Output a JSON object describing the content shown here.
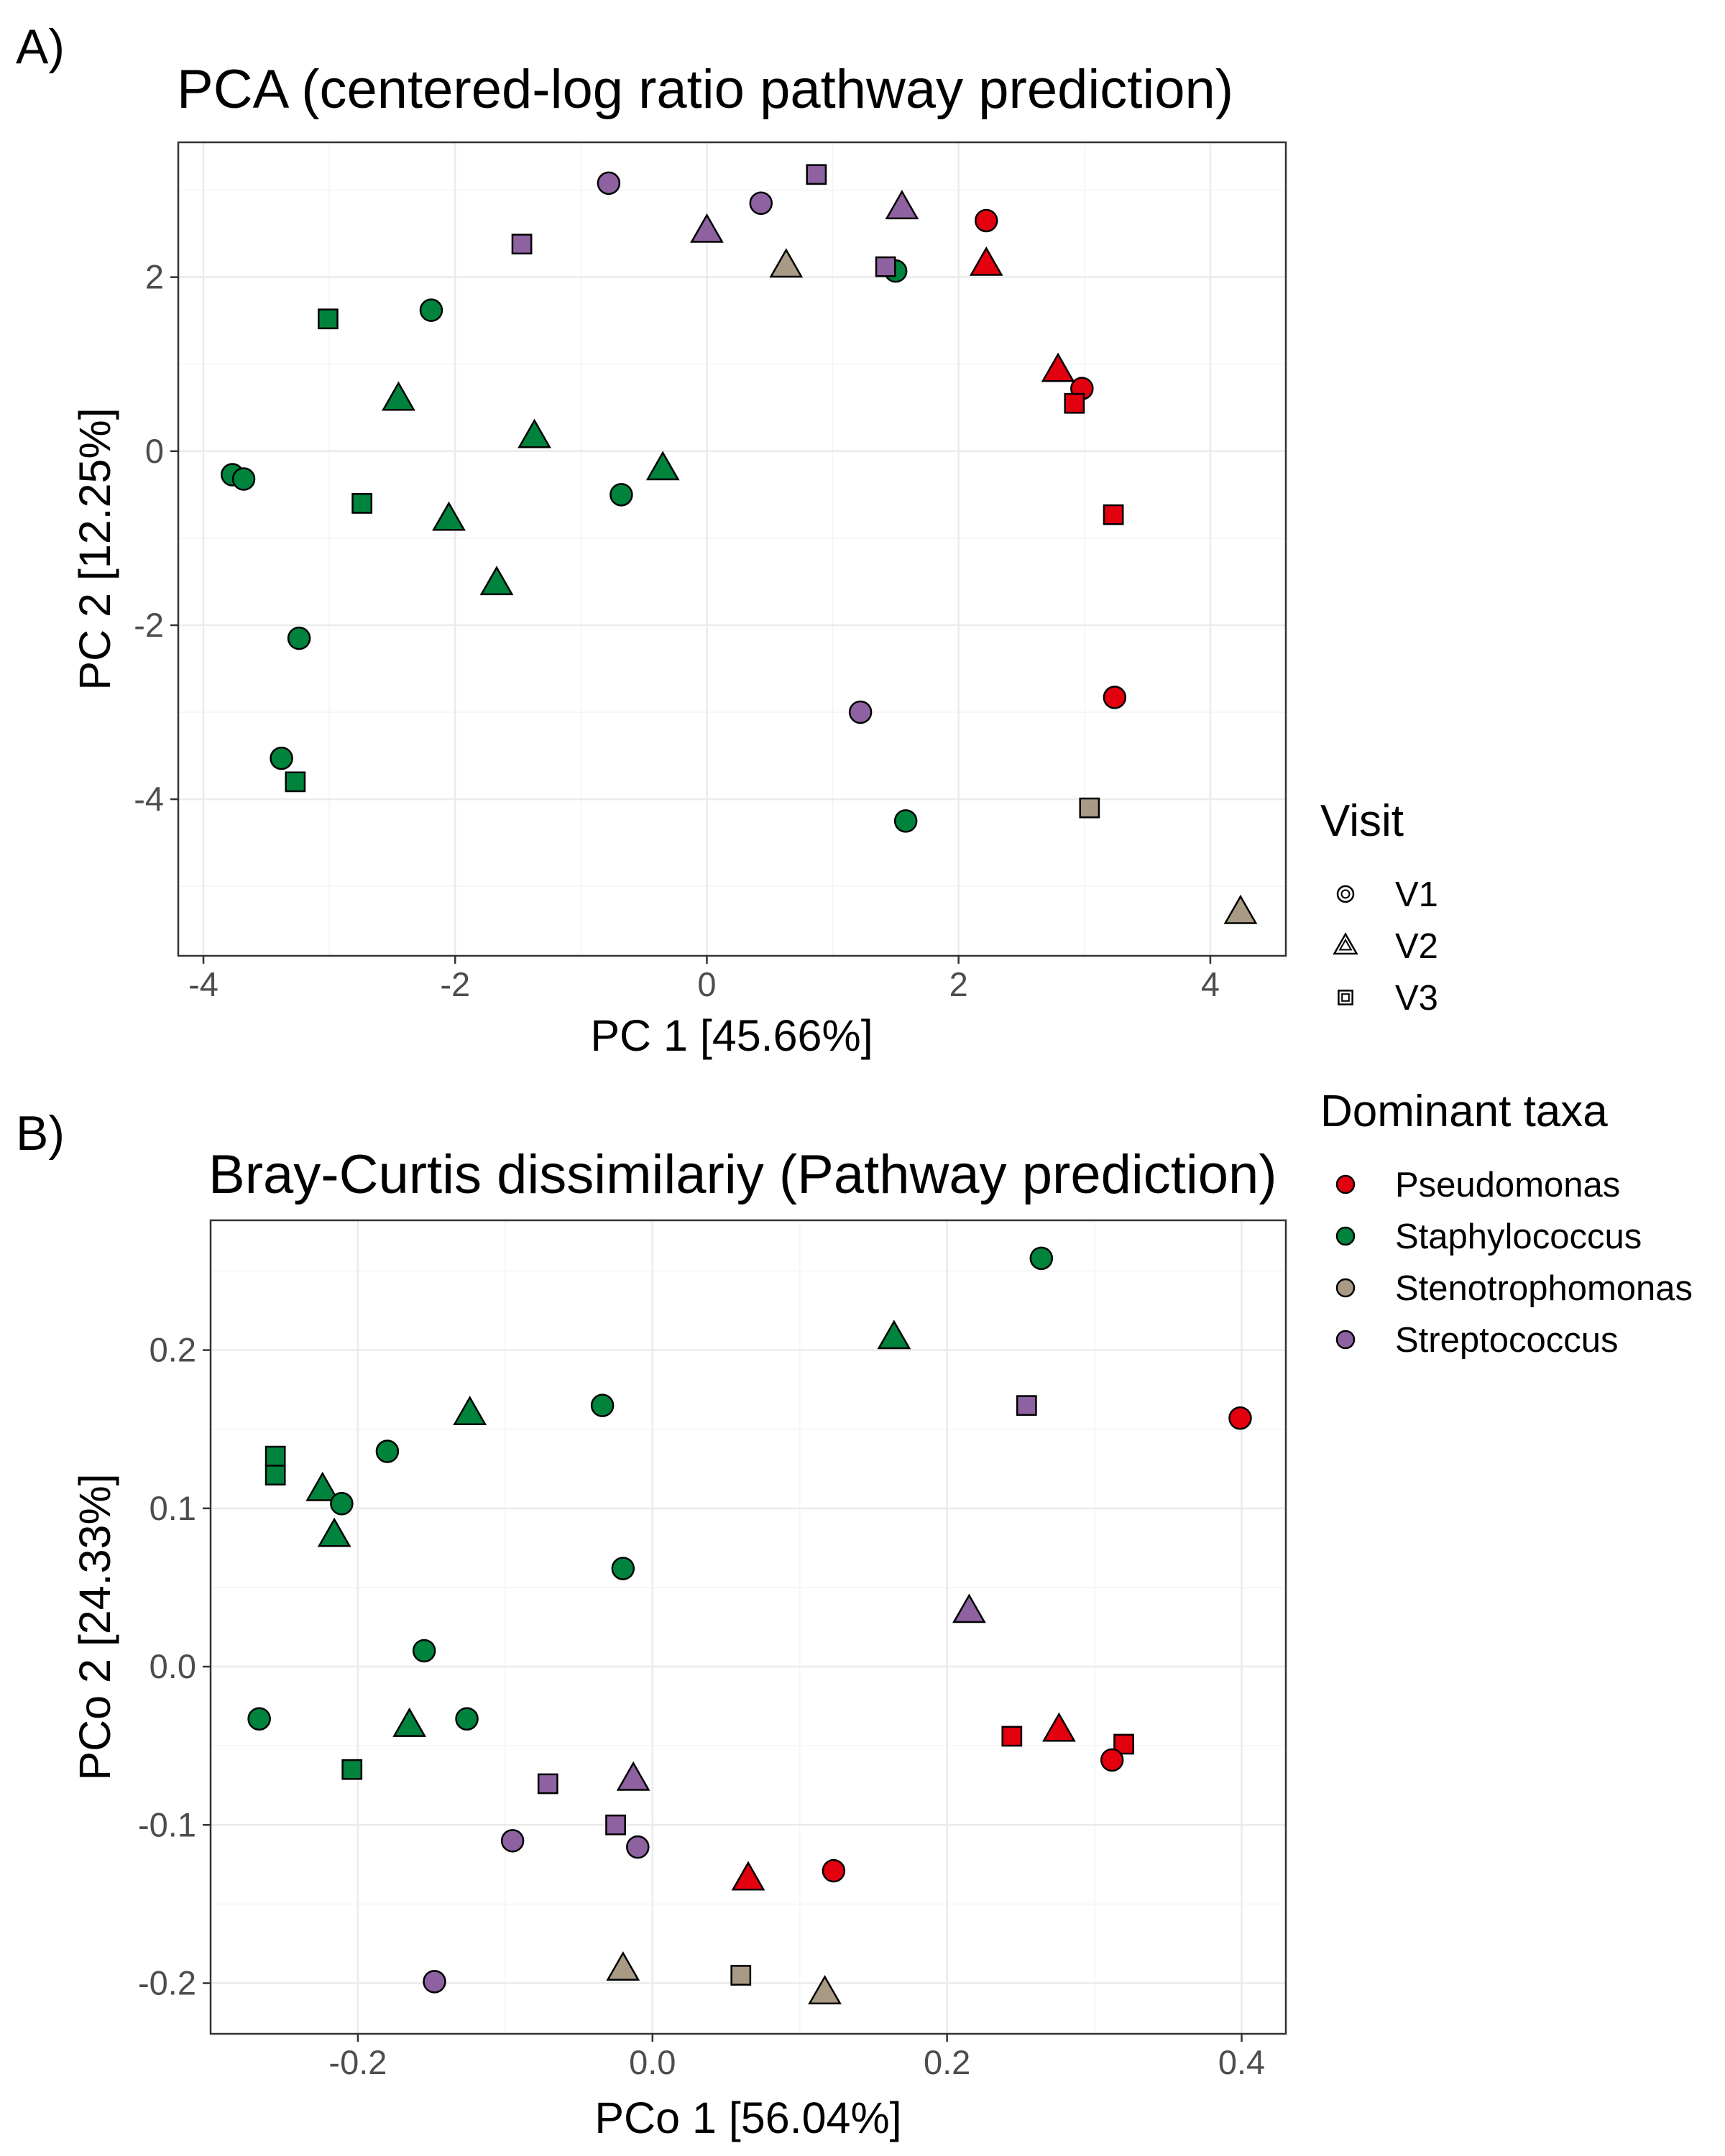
{
  "colors": {
    "Pseudomonas": "#e3000f",
    "Staphylococcus": "#00843d",
    "Stenotrophomonas": "#a89a84",
    "Streptococcus": "#8e61a0"
  },
  "legend": {
    "visit_title": "Visit",
    "visit_items": [
      {
        "label": "V1",
        "shape": "circle"
      },
      {
        "label": "V2",
        "shape": "triangle"
      },
      {
        "label": "V3",
        "shape": "square"
      }
    ],
    "taxa_title": "Dominant taxa",
    "taxa_items": [
      "Pseudomonas",
      "Staphylococcus",
      "Stenotrophomonas",
      "Streptococcus"
    ]
  },
  "chart_data": [
    {
      "panel": "A)",
      "type": "scatter",
      "title": "PCA (centered-log ratio pathway prediction)",
      "xlabel": "PC 1 [45.66%]",
      "ylabel": "PC 2 [12.25%]",
      "xlim": [
        -4.2,
        4.6
      ],
      "ylim": [
        -5.8,
        3.55
      ],
      "xticks": [
        -4,
        -2,
        0,
        2,
        4
      ],
      "yticks": [
        -4,
        -2,
        0,
        2
      ],
      "xtick_labels": [
        "-4",
        "-2",
        "0",
        "2",
        "4"
      ],
      "ytick_labels": [
        "-4",
        "-2",
        "0",
        "2"
      ],
      "grid": true,
      "points": [
        {
          "x": -0.78,
          "y": 3.08,
          "taxa": "Streptococcus",
          "visit": "V1"
        },
        {
          "x": 0.43,
          "y": 2.85,
          "taxa": "Streptococcus",
          "visit": "V1"
        },
        {
          "x": 0.87,
          "y": 3.18,
          "taxa": "Streptococcus",
          "visit": "V3"
        },
        {
          "x": 1.55,
          "y": 2.8,
          "taxa": "Streptococcus",
          "visit": "V2"
        },
        {
          "x": 0.0,
          "y": 2.53,
          "taxa": "Streptococcus",
          "visit": "V2"
        },
        {
          "x": -1.47,
          "y": 2.38,
          "taxa": "Streptococcus",
          "visit": "V3"
        },
        {
          "x": 2.22,
          "y": 2.65,
          "taxa": "Pseudomonas",
          "visit": "V1"
        },
        {
          "x": 2.22,
          "y": 2.15,
          "taxa": "Pseudomonas",
          "visit": "V2"
        },
        {
          "x": 0.63,
          "y": 2.13,
          "taxa": "Stenotrophomonas",
          "visit": "V2"
        },
        {
          "x": 1.5,
          "y": 2.07,
          "taxa": "Staphylococcus",
          "visit": "V1"
        },
        {
          "x": 1.42,
          "y": 2.12,
          "taxa": "Streptococcus",
          "visit": "V3"
        },
        {
          "x": -3.01,
          "y": 1.52,
          "taxa": "Staphylococcus",
          "visit": "V3"
        },
        {
          "x": -2.19,
          "y": 1.62,
          "taxa": "Staphylococcus",
          "visit": "V1"
        },
        {
          "x": -2.45,
          "y": 0.6,
          "taxa": "Staphylococcus",
          "visit": "V2"
        },
        {
          "x": -1.37,
          "y": 0.17,
          "taxa": "Staphylococcus",
          "visit": "V2"
        },
        {
          "x": 2.79,
          "y": 0.93,
          "taxa": "Pseudomonas",
          "visit": "V2"
        },
        {
          "x": 2.98,
          "y": 0.72,
          "taxa": "Pseudomonas",
          "visit": "V1"
        },
        {
          "x": 2.92,
          "y": 0.55,
          "taxa": "Pseudomonas",
          "visit": "V3"
        },
        {
          "x": -3.77,
          "y": -0.27,
          "taxa": "Staphylococcus",
          "visit": "V1"
        },
        {
          "x": -3.68,
          "y": -0.32,
          "taxa": "Staphylococcus",
          "visit": "V1"
        },
        {
          "x": -0.68,
          "y": -0.5,
          "taxa": "Staphylococcus",
          "visit": "V1"
        },
        {
          "x": -0.35,
          "y": -0.2,
          "taxa": "Staphylococcus",
          "visit": "V2"
        },
        {
          "x": -2.74,
          "y": -0.6,
          "taxa": "Staphylococcus",
          "visit": "V3"
        },
        {
          "x": -2.05,
          "y": -0.78,
          "taxa": "Staphylococcus",
          "visit": "V2"
        },
        {
          "x": 3.23,
          "y": -0.73,
          "taxa": "Pseudomonas",
          "visit": "V3"
        },
        {
          "x": -1.67,
          "y": -1.52,
          "taxa": "Staphylococcus",
          "visit": "V2"
        },
        {
          "x": -3.24,
          "y": -2.15,
          "taxa": "Staphylococcus",
          "visit": "V1"
        },
        {
          "x": 1.22,
          "y": -3.0,
          "taxa": "Streptococcus",
          "visit": "V1"
        },
        {
          "x": 3.24,
          "y": -2.83,
          "taxa": "Pseudomonas",
          "visit": "V1"
        },
        {
          "x": -3.38,
          "y": -3.53,
          "taxa": "Staphylococcus",
          "visit": "V1"
        },
        {
          "x": -3.27,
          "y": -3.8,
          "taxa": "Staphylococcus",
          "visit": "V3"
        },
        {
          "x": 1.58,
          "y": -4.25,
          "taxa": "Staphylococcus",
          "visit": "V1"
        },
        {
          "x": 3.04,
          "y": -4.1,
          "taxa": "Stenotrophomonas",
          "visit": "V3"
        },
        {
          "x": 4.24,
          "y": -5.3,
          "taxa": "Stenotrophomonas",
          "visit": "V2"
        }
      ]
    },
    {
      "panel": "B)",
      "type": "scatter",
      "title": "Bray-Curtis dissimilariy (Pathway prediction)",
      "xlabel": "PCo 1 [56.04%]",
      "ylabel": "PCo 2 [24.33%]",
      "xlim": [
        -0.3,
        0.43
      ],
      "ylim": [
        -0.232,
        0.282
      ],
      "xticks": [
        -0.2,
        0.0,
        0.2,
        0.4
      ],
      "yticks": [
        -0.2,
        -0.1,
        0.0,
        0.1,
        0.2
      ],
      "xtick_labels": [
        "-0.2",
        "0.0",
        "0.2",
        "0.4"
      ],
      "ytick_labels": [
        "-0.2",
        "-0.1",
        "0.0",
        "0.1",
        "0.2"
      ],
      "grid": true,
      "points": [
        {
          "x": 0.264,
          "y": 0.258,
          "taxa": "Staphylococcus",
          "visit": "V1"
        },
        {
          "x": 0.164,
          "y": 0.208,
          "taxa": "Staphylococcus",
          "visit": "V2"
        },
        {
          "x": -0.124,
          "y": 0.16,
          "taxa": "Staphylococcus",
          "visit": "V2"
        },
        {
          "x": -0.034,
          "y": 0.165,
          "taxa": "Staphylococcus",
          "visit": "V1"
        },
        {
          "x": 0.254,
          "y": 0.165,
          "taxa": "Streptococcus",
          "visit": "V3"
        },
        {
          "x": 0.399,
          "y": 0.157,
          "taxa": "Pseudomonas",
          "visit": "V1"
        },
        {
          "x": -0.256,
          "y": 0.133,
          "taxa": "Staphylococcus",
          "visit": "V3"
        },
        {
          "x": -0.256,
          "y": 0.121,
          "taxa": "Staphylococcus",
          "visit": "V3"
        },
        {
          "x": -0.18,
          "y": 0.136,
          "taxa": "Staphylococcus",
          "visit": "V1"
        },
        {
          "x": -0.224,
          "y": 0.112,
          "taxa": "Staphylococcus",
          "visit": "V2"
        },
        {
          "x": -0.211,
          "y": 0.103,
          "taxa": "Staphylococcus",
          "visit": "V1"
        },
        {
          "x": -0.216,
          "y": 0.083,
          "taxa": "Staphylococcus",
          "visit": "V2"
        },
        {
          "x": -0.02,
          "y": 0.062,
          "taxa": "Staphylococcus",
          "visit": "V1"
        },
        {
          "x": 0.215,
          "y": 0.035,
          "taxa": "Streptococcus",
          "visit": "V2"
        },
        {
          "x": -0.155,
          "y": 0.01,
          "taxa": "Staphylococcus",
          "visit": "V1"
        },
        {
          "x": -0.267,
          "y": -0.033,
          "taxa": "Staphylococcus",
          "visit": "V1"
        },
        {
          "x": -0.165,
          "y": -0.037,
          "taxa": "Staphylococcus",
          "visit": "V2"
        },
        {
          "x": -0.126,
          "y": -0.033,
          "taxa": "Staphylococcus",
          "visit": "V1"
        },
        {
          "x": 0.244,
          "y": -0.044,
          "taxa": "Pseudomonas",
          "visit": "V3"
        },
        {
          "x": 0.276,
          "y": -0.04,
          "taxa": "Pseudomonas",
          "visit": "V2"
        },
        {
          "x": 0.32,
          "y": -0.049,
          "taxa": "Pseudomonas",
          "visit": "V3"
        },
        {
          "x": 0.312,
          "y": -0.059,
          "taxa": "Pseudomonas",
          "visit": "V1"
        },
        {
          "x": -0.204,
          "y": -0.065,
          "taxa": "Staphylococcus",
          "visit": "V3"
        },
        {
          "x": -0.071,
          "y": -0.074,
          "taxa": "Streptococcus",
          "visit": "V3"
        },
        {
          "x": -0.013,
          "y": -0.071,
          "taxa": "Streptococcus",
          "visit": "V2"
        },
        {
          "x": -0.095,
          "y": -0.11,
          "taxa": "Streptococcus",
          "visit": "V1"
        },
        {
          "x": -0.025,
          "y": -0.1,
          "taxa": "Streptococcus",
          "visit": "V3"
        },
        {
          "x": -0.01,
          "y": -0.114,
          "taxa": "Streptococcus",
          "visit": "V1"
        },
        {
          "x": 0.065,
          "y": -0.134,
          "taxa": "Pseudomonas",
          "visit": "V2"
        },
        {
          "x": 0.123,
          "y": -0.129,
          "taxa": "Pseudomonas",
          "visit": "V1"
        },
        {
          "x": -0.02,
          "y": -0.191,
          "taxa": "Stenotrophomonas",
          "visit": "V2"
        },
        {
          "x": 0.06,
          "y": -0.195,
          "taxa": "Stenotrophomonas",
          "visit": "V3"
        },
        {
          "x": 0.117,
          "y": -0.206,
          "taxa": "Stenotrophomonas",
          "visit": "V2"
        },
        {
          "x": -0.148,
          "y": -0.199,
          "taxa": "Streptococcus",
          "visit": "V1"
        }
      ]
    }
  ]
}
